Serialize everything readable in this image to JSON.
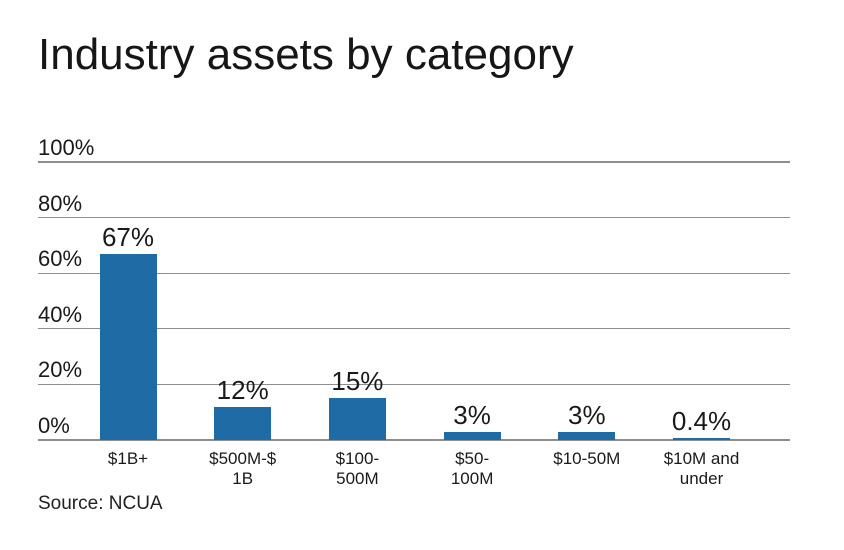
{
  "colors": {
    "bar": "#1e6ba6",
    "gridline": "#8d8d8d",
    "text": "#1a1a1a"
  },
  "chart_data": {
    "type": "bar",
    "title": "Industry assets by category",
    "source": "Source: NCUA",
    "categories": [
      "$1B+",
      "$500M-$1B",
      "$100-500M",
      "$50-100M",
      "$10-50M",
      "$10M and under"
    ],
    "category_lines": [
      [
        "$1B+"
      ],
      [
        "$500M-$",
        "1B"
      ],
      [
        "$100-",
        "500M"
      ],
      [
        "$50-",
        "100M"
      ],
      [
        "$10-50M"
      ],
      [
        "$10M and",
        "under"
      ]
    ],
    "values": [
      67,
      12,
      15,
      3,
      3,
      0.4
    ],
    "value_labels": [
      "67%",
      "12%",
      "15%",
      "3%",
      "3%",
      "0.4%"
    ],
    "y_tick_labels": [
      "100%",
      "80%",
      "60%",
      "40%",
      "20%",
      "0%"
    ],
    "y_tick_values": [
      100,
      80,
      60,
      40,
      20,
      0
    ],
    "ylim": [
      0,
      100
    ],
    "grid": true,
    "legend_position": "none",
    "xlabel": "",
    "ylabel": ""
  }
}
